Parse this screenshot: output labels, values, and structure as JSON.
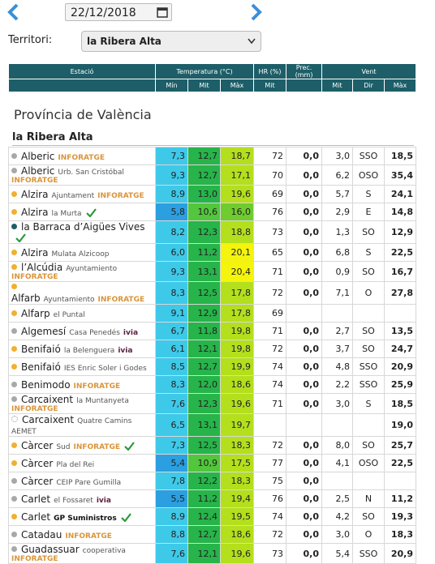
{
  "header": {
    "date": "22/12/2018",
    "territory_label": "Territori:",
    "territory": "la Ribera Alta"
  },
  "table": {
    "header_top": [
      "Estació",
      "Temperatura (°C)",
      "HR (%)",
      "Prec. (mm)",
      "Vent"
    ],
    "header_sub": [
      "Mín",
      "Mit",
      "Màx",
      "Mit",
      "Mit",
      "Dir",
      "Màx"
    ]
  },
  "section": {
    "province": "Província de València",
    "region": "la Ribera Alta"
  },
  "rows": [
    {
      "name": "Alberic",
      "network": "INFORATGE",
      "dot": "#a8a8a8",
      "values": [
        "7,3",
        "12,7",
        "18,7",
        "72",
        "0,0",
        "3,0",
        "SSO",
        "18,5"
      ]
    },
    {
      "name": "Alberic",
      "place": "Urb. San Cristóbal",
      "network": "INFORATGE",
      "dot": "#a8a8a8",
      "values": [
        "9,3",
        "12,7",
        "17,1",
        "70",
        "0,0",
        "6,2",
        "OSO",
        "35,4"
      ]
    },
    {
      "name": "Alzira",
      "place": "Ajuntament",
      "network": "INFORATGE",
      "dot": "#f0b030",
      "values": [
        "8,9",
        "13,0",
        "19,6",
        "69",
        "0,0",
        "5,7",
        "S",
        "24,1"
      ]
    },
    {
      "name": "Alzira",
      "place": "la Murta",
      "check": true,
      "dot": "#f0b030",
      "values": [
        "5,8",
        "10,6",
        "16,0",
        "76",
        "0,0",
        "2,9",
        "E",
        "14,8"
      ]
    },
    {
      "name": "la Barraca d’Aigües Vives",
      "check": true,
      "dot": "#1d5e68",
      "values": [
        "8,2",
        "12,3",
        "18,8",
        "73",
        "0,0",
        "1,3",
        "SO",
        "12,9"
      ]
    },
    {
      "name": "Alzira",
      "place": "Mulata Alzicoop",
      "dot": "#f0b030",
      "values": [
        "6,0",
        "11,2",
        "20,1",
        "65",
        "0,0",
        "6,8",
        "S",
        "22,5"
      ]
    },
    {
      "name": "l’Alcúdia",
      "place": "Ayuntamiento",
      "network": "INFORATGE",
      "dot": "#f0b030",
      "values": [
        "9,3",
        "13,1",
        "20,4",
        "71",
        "0,0",
        "0,9",
        "SO",
        "16,7"
      ]
    },
    {
      "name": "Alfarb",
      "place": "Ayuntamiento",
      "network": "INFORATGE",
      "dot": "#f0b030",
      "values": [
        "8,3",
        "12,5",
        "17,8",
        "72",
        "0,0",
        "7,1",
        "O",
        "27,8"
      ]
    },
    {
      "name": "Alfarp",
      "place": "el Puntal",
      "dot": "#f0b030",
      "values": [
        "9,1",
        "12,9",
        "17,8",
        "69",
        null,
        null,
        null,
        null
      ]
    },
    {
      "name": "Algemesí",
      "place": "Casa Penedés",
      "network": "ivia",
      "dot": "#a8a8a8",
      "values": [
        "6,7",
        "11,8",
        "19,8",
        "71",
        "0,0",
        "2,7",
        "SO",
        "13,5"
      ]
    },
    {
      "name": "Benifaió",
      "place": "la Belenguera",
      "network": "ivia",
      "dot": "#f0b030",
      "values": [
        "6,1",
        "12,1",
        "19,8",
        "72",
        "0,0",
        "3,7",
        "SO",
        "24,7"
      ]
    },
    {
      "name": "Benifaió",
      "place": "IES Enric Soler i Godes",
      "dot": "#f0b030",
      "values": [
        "8,5",
        "12,7",
        "19,9",
        "74",
        "0,0",
        "4,8",
        "SSO",
        "20,9"
      ]
    },
    {
      "name": "Benimodo",
      "network": "INFORATGE",
      "dot": "#a8a8a8",
      "values": [
        "8,3",
        "12,0",
        "18,6",
        "74",
        "0,0",
        "2,2",
        "SSO",
        "25,9"
      ]
    },
    {
      "name": "Carcaixent",
      "place": "la Muntanyeta",
      "network": "INFORATGE",
      "dot": "#a8a8a8",
      "values": [
        "7,6",
        "12,3",
        "19,6",
        "71",
        "0,0",
        "3,0",
        "S",
        "18,5"
      ]
    },
    {
      "name": "Carcaixent",
      "place": "Quatre Camins AEMET",
      "dot": "#ffffff",
      "values": [
        "6,5",
        "13,1",
        "19,7",
        null,
        null,
        null,
        null,
        "19,0"
      ]
    },
    {
      "name": "Càrcer",
      "place": "Sud",
      "network": "INFORATGE",
      "check": true,
      "dot": "#f0b030",
      "values": [
        "7,3",
        "12,5",
        "18,3",
        "72",
        "0,0",
        "8,0",
        "SO",
        "25,7"
      ]
    },
    {
      "name": "Càrcer",
      "place": "Pla del Rei",
      "dot": "#f0b030",
      "values": [
        "5,4",
        "10,9",
        "17,5",
        "77",
        "0,0",
        "4,1",
        "OSO",
        "22,5"
      ]
    },
    {
      "name": "Càrcer",
      "place": "CEIP Pare Gumilla",
      "dot": "#a8a8a8",
      "values": [
        "7,8",
        "12,2",
        "18,3",
        "75",
        "0,0",
        null,
        null,
        null
      ]
    },
    {
      "name": "Carlet",
      "place": "el Fossaret",
      "network": "ivia",
      "dot": "#a8a8a8",
      "values": [
        "5,5",
        "11,2",
        "19,4",
        "76",
        "0,0",
        "2,5",
        "N",
        "11,2"
      ]
    },
    {
      "name": "Carlet",
      "network": "GP Suministros",
      "check": true,
      "dot": "#f0b030",
      "values": [
        "8,9",
        "12,4",
        "19,5",
        "74",
        "0,0",
        "4,2",
        "SO",
        "19,3"
      ]
    },
    {
      "name": "Catadau",
      "network": "INFORATGE",
      "dot": "#a8a8a8",
      "values": [
        "8,8",
        "12,7",
        "18,6",
        "72",
        "0,0",
        "3,0",
        "O",
        "18,3"
      ]
    },
    {
      "name": "Guadassuar",
      "place": "cooperativa",
      "network": "INFORATGE",
      "dot": "#a8a8a8",
      "values": [
        "7,6",
        "12,1",
        "19,6",
        "73",
        "0,0",
        "5,4",
        "SSO",
        "20,9"
      ]
    }
  ]
}
